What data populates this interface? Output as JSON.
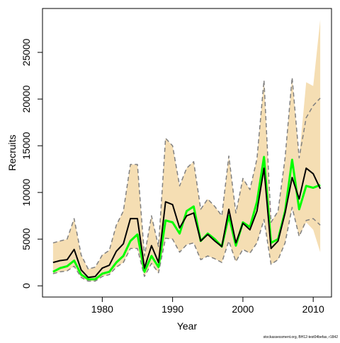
{
  "chart_data": {
    "type": "line",
    "xlabel": "Year",
    "ylabel": "Recruits",
    "footer": "stockassessment.org, BH12-test04befas, r1842",
    "x": [
      1973,
      1974,
      1975,
      1976,
      1977,
      1978,
      1979,
      1980,
      1981,
      1982,
      1983,
      1984,
      1985,
      1986,
      1987,
      1988,
      1989,
      1990,
      1991,
      1992,
      1993,
      1994,
      1995,
      1996,
      1997,
      1998,
      1999,
      2000,
      2001,
      2002,
      2003,
      2004,
      2005,
      2006,
      2007,
      2008,
      2009,
      2010,
      2011
    ],
    "xlim": [
      1971.5,
      2012.6
    ],
    "xticks": [
      1980,
      1990,
      2000,
      2010
    ],
    "ylim": [
      -1200,
      29700
    ],
    "yticks": [
      0,
      5000,
      10000,
      15000,
      20000,
      25000
    ],
    "band": {
      "color": "#f5deb3",
      "upper": [
        4600,
        4800,
        5000,
        7200,
        3300,
        1800,
        2000,
        3300,
        3800,
        6500,
        8000,
        13000,
        13000,
        3200,
        7500,
        4200,
        15800,
        15000,
        10700,
        12600,
        13300,
        8200,
        9300,
        8500,
        7500,
        13900,
        7800,
        11500,
        10300,
        13600,
        22000,
        6800,
        8000,
        13700,
        22300,
        13700,
        21800,
        21400,
        28500
      ],
      "lower": [
        1300,
        1500,
        1600,
        2100,
        900,
        500,
        500,
        1000,
        1200,
        2000,
        2500,
        4000,
        4000,
        1000,
        2400,
        1400,
        5100,
        5000,
        3600,
        4400,
        4600,
        2800,
        3200,
        2900,
        2500,
        4800,
        2600,
        3900,
        3500,
        4600,
        7100,
        2300,
        2800,
        4600,
        8400,
        5300,
        6800,
        6000,
        3600
      ]
    },
    "series": [
      {
        "color": "#808080",
        "dashed": true,
        "values": [
          4600,
          4800,
          5000,
          7200,
          3300,
          1800,
          2000,
          3300,
          3800,
          6500,
          8000,
          13000,
          13000,
          3200,
          7500,
          4200,
          15800,
          15000,
          10700,
          12600,
          13300,
          8200,
          9300,
          8500,
          7500,
          13900,
          7800,
          11500,
          10300,
          13600,
          22000,
          6800,
          8000,
          13700,
          22300,
          13700,
          18000,
          19300,
          20100
        ]
      },
      {
        "color": "#808080",
        "dashed": true,
        "values": [
          1300,
          1500,
          1600,
          2100,
          900,
          500,
          500,
          1000,
          1200,
          2000,
          2500,
          4000,
          4000,
          1000,
          2400,
          1400,
          5100,
          5000,
          3600,
          4400,
          4600,
          2800,
          3200,
          2900,
          2500,
          4800,
          2600,
          3900,
          3500,
          4600,
          7100,
          2300,
          2800,
          4600,
          8400,
          5300,
          7000,
          7200,
          6500
        ]
      },
      {
        "color": "#00ff00",
        "width": 3,
        "values": [
          1500,
          1900,
          2100,
          2700,
          1200,
          700,
          700,
          1300,
          1500,
          2500,
          3200,
          4800,
          5500,
          1500,
          3200,
          2000,
          7000,
          6800,
          5600,
          8000,
          8500,
          4800,
          5600,
          5000,
          4200,
          7500,
          4300,
          6800,
          6300,
          9000,
          13800,
          4600,
          5000,
          8000,
          13500,
          8200,
          10700,
          10500,
          10800
        ]
      },
      {
        "color": "#000000",
        "width": 2,
        "values": [
          2500,
          2700,
          2800,
          3900,
          1700,
          900,
          1000,
          1900,
          2200,
          3700,
          4500,
          7200,
          7200,
          1900,
          4300,
          2500,
          9000,
          8700,
          6200,
          7500,
          7800,
          4800,
          5500,
          4800,
          4200,
          8200,
          4600,
          6700,
          6000,
          8000,
          12600,
          4000,
          4800,
          7800,
          11600,
          9300,
          12600,
          12000,
          10400
        ]
      }
    ]
  }
}
